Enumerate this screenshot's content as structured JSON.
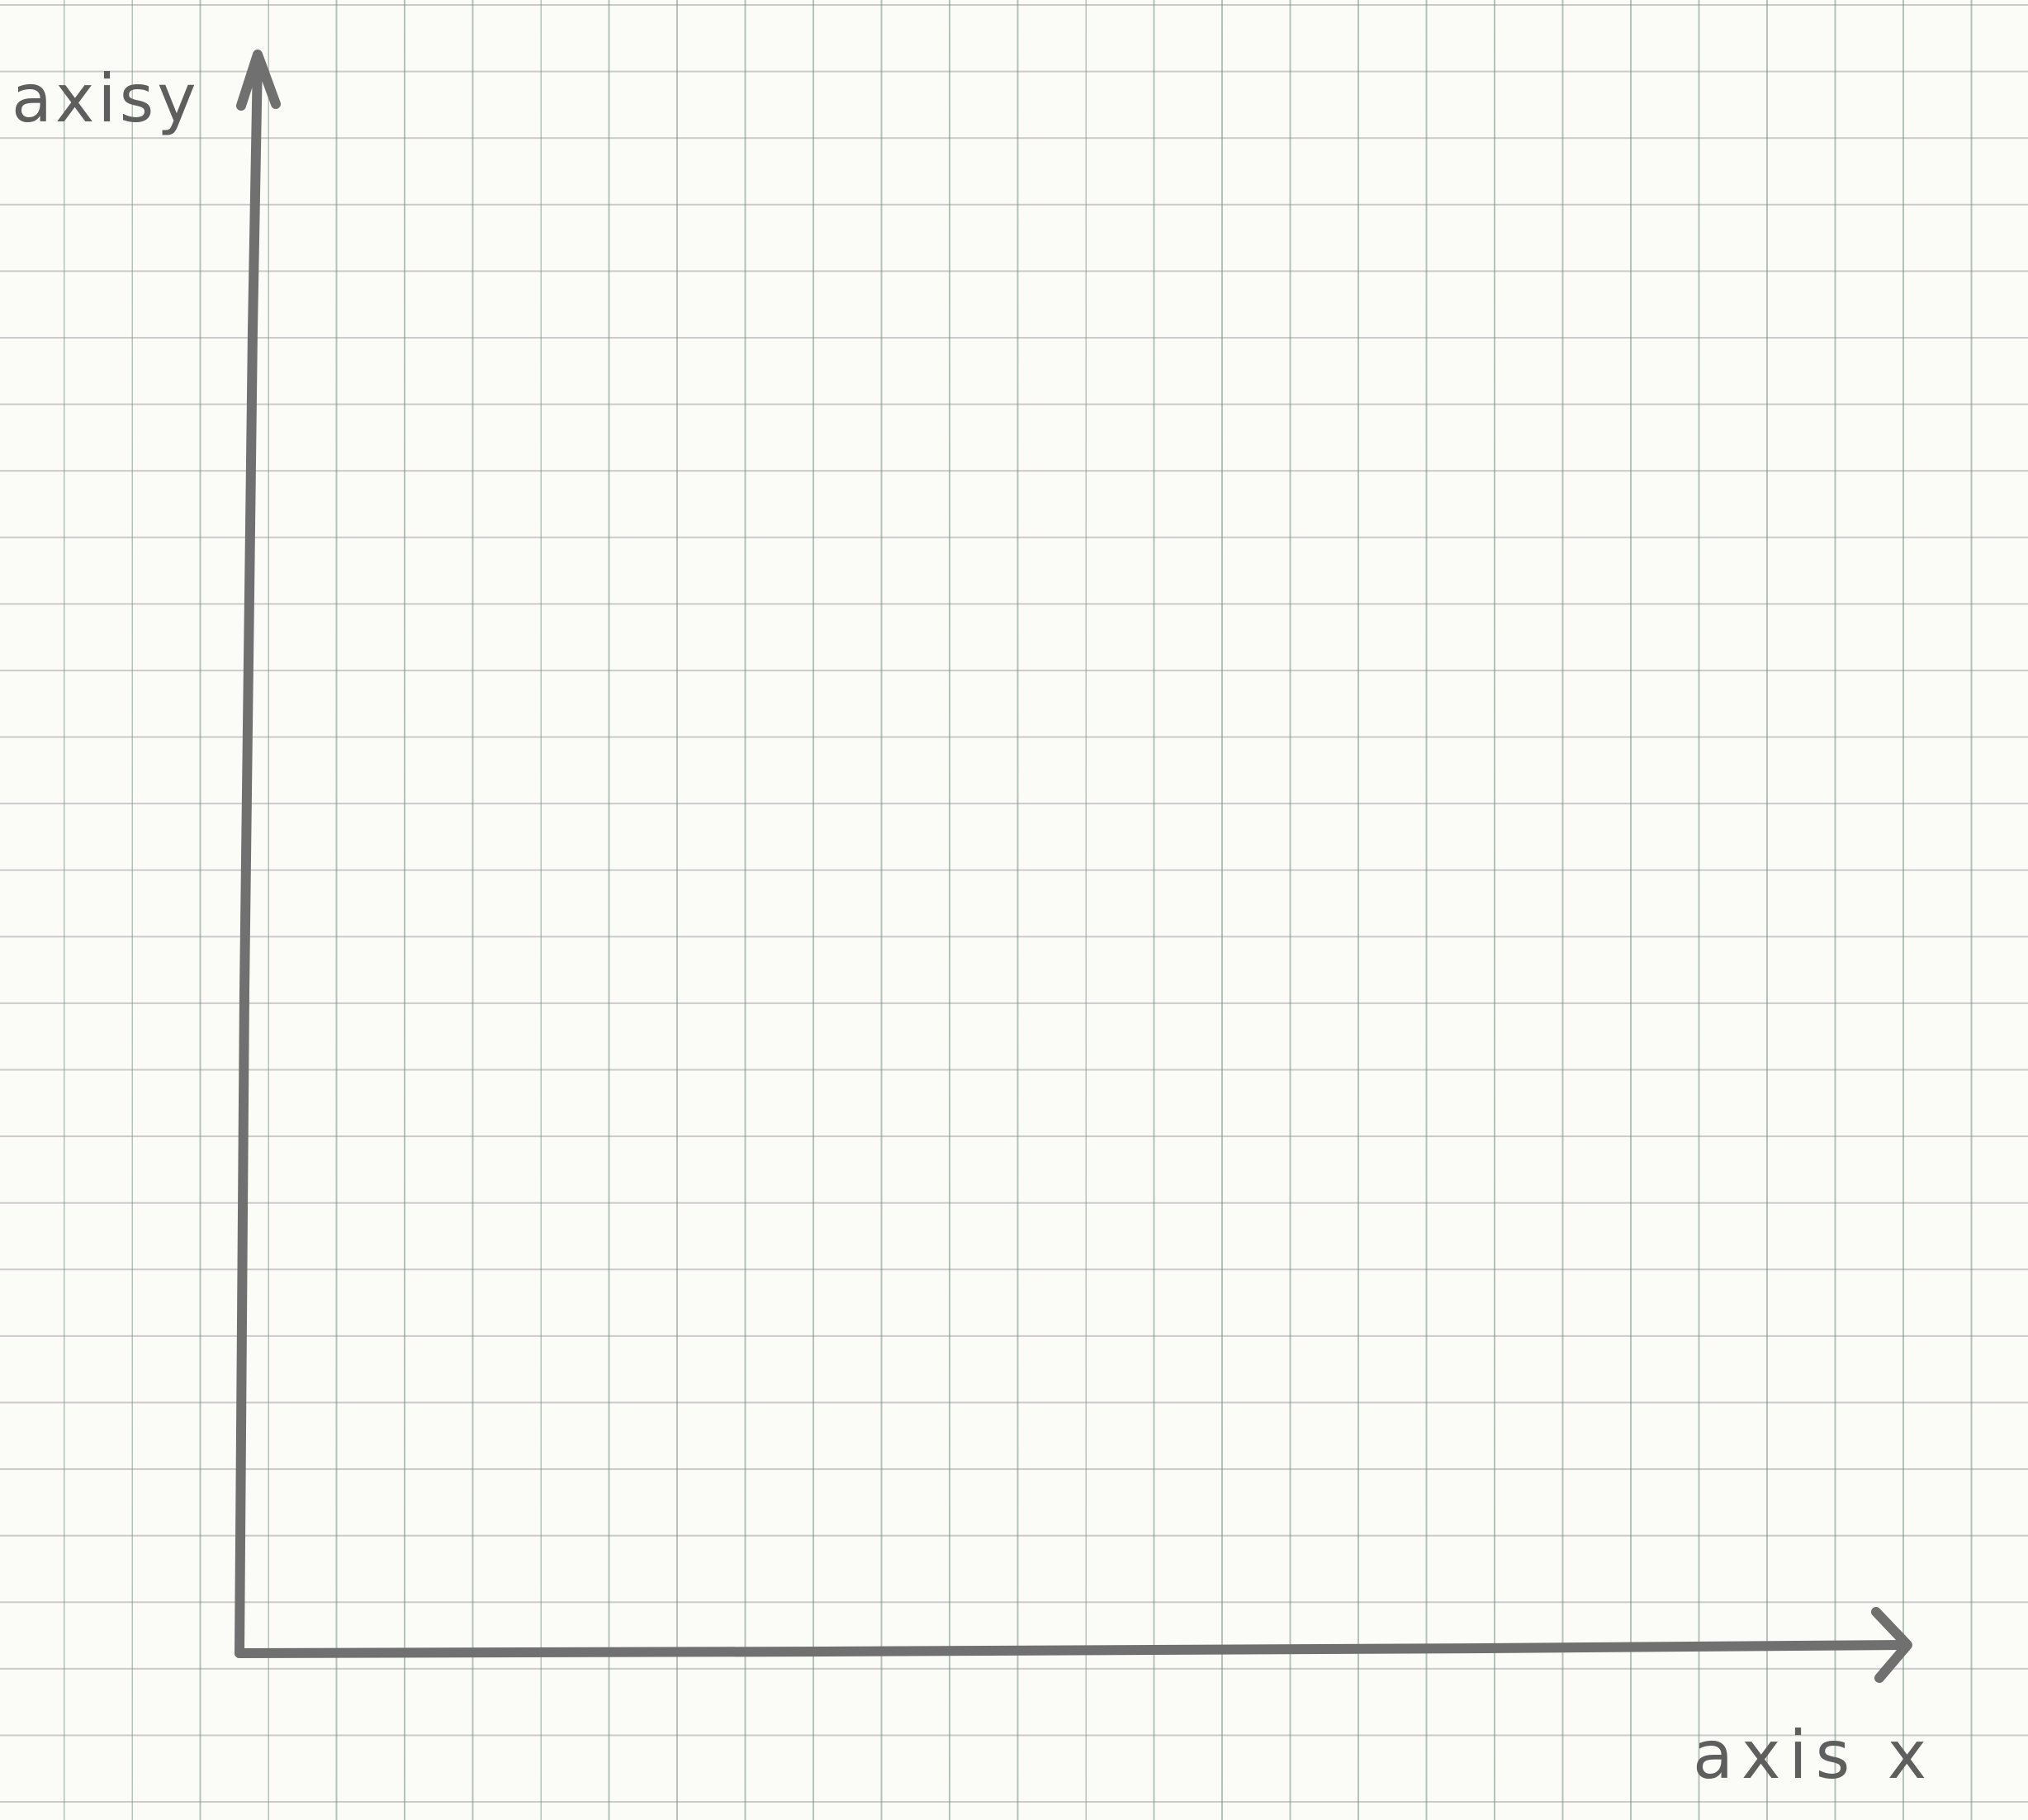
{
  "labels": {
    "y_axis": "axisy",
    "x_axis": "axis x"
  },
  "colors": {
    "paper": "#fbfbf8",
    "grid_vertical": "#7f9a86",
    "grid_horizontal": "#968c96",
    "pencil": "#707070"
  }
}
